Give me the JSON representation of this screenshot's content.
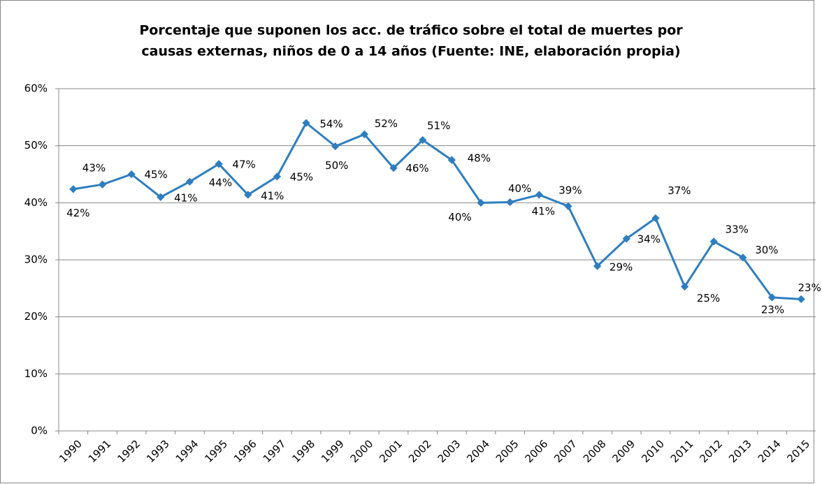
{
  "chart_data": {
    "type": "line",
    "title": [
      "Porcentaje que suponen los acc. de tráfico sobre el total de muertes por",
      "causas externas, niños de 0 a 14 años (Fuente: INE, elaboración propia)"
    ],
    "categories": [
      "1990",
      "1991",
      "1992",
      "1993",
      "1994",
      "1995",
      "1996",
      "1997",
      "1998",
      "1999",
      "2000",
      "2001",
      "2002",
      "2003",
      "2004",
      "2005",
      "2006",
      "2007",
      "2008",
      "2009",
      "2010",
      "2011",
      "2012",
      "2013",
      "2014",
      "2015"
    ],
    "series": [
      {
        "color": "#2e7ebf",
        "values": [
          42.4,
          43.2,
          45.0,
          41.0,
          43.7,
          46.8,
          41.4,
          44.6,
          54.0,
          49.9,
          52.0,
          46.1,
          51.0,
          47.5,
          40.0,
          40.1,
          41.4,
          39.4,
          28.9,
          33.7,
          37.3,
          25.3,
          33.2,
          30.4,
          23.4,
          23.1
        ],
        "value_labels": [
          "42%",
          "43%",
          "45%",
          "41%",
          "44%",
          "47%",
          "41%",
          "45%",
          "54%",
          "50%",
          "52%",
          "46%",
          "51%",
          "48%",
          "40%",
          "40%",
          "41%",
          "39%",
          "29%",
          "34%",
          "37%",
          "25%",
          "33%",
          "30%",
          "23%",
          "23%"
        ]
      }
    ],
    "ylim": [
      0,
      60
    ],
    "yticks": [
      {
        "value": 0,
        "label": "0%"
      },
      {
        "value": 10,
        "label": "10%"
      },
      {
        "value": 20,
        "label": "20%"
      },
      {
        "value": 30,
        "label": "30%"
      },
      {
        "value": 40,
        "label": "40%"
      },
      {
        "value": 50,
        "label": "50%"
      },
      {
        "value": 60,
        "label": "60%"
      }
    ],
    "grid": true
  }
}
